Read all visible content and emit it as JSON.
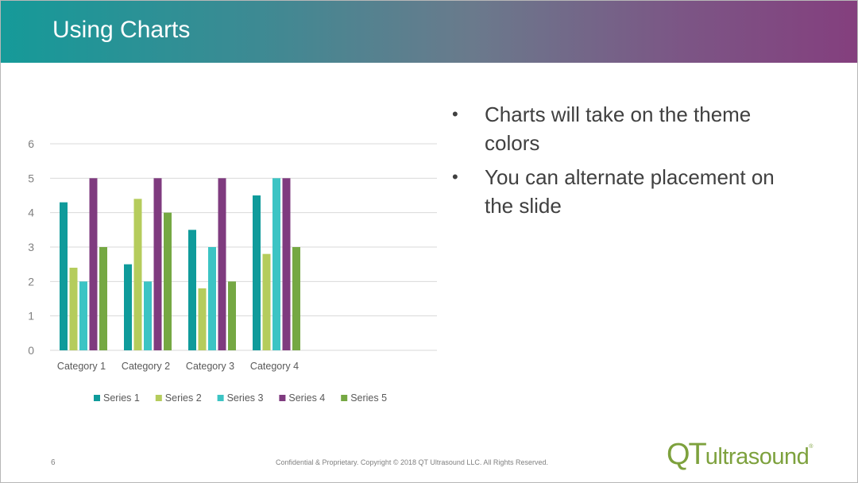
{
  "slide": {
    "title": "Using Charts",
    "bullets": [
      "Charts will take on the theme colors",
      "You can alternate placement on the slide"
    ],
    "page_number": "6",
    "footer": "Confidential & Proprietary. Copyright © 2018 QT Ultrasound LLC. All Rights Reserved.",
    "logo": {
      "qt": "QT",
      "word": "ultrasound",
      "reg": "®"
    },
    "header_gradient": [
      "#159a99",
      "#843f7e"
    ]
  },
  "chart_data": {
    "type": "bar",
    "categories": [
      "Category 1",
      "Category 2",
      "Category 3",
      "Category 4"
    ],
    "series": [
      {
        "name": "Series 1",
        "color": "#0f9b9b",
        "values": [
          4.3,
          2.5,
          3.5,
          4.5
        ]
      },
      {
        "name": "Series 2",
        "color": "#b5cc5c",
        "values": [
          2.4,
          4.4,
          1.8,
          2.8
        ]
      },
      {
        "name": "Series 3",
        "color": "#3cc4c4",
        "values": [
          2,
          2,
          3,
          5
        ]
      },
      {
        "name": "Series 4",
        "color": "#7f3b7f",
        "values": [
          5,
          5,
          5,
          5
        ]
      },
      {
        "name": "Series 5",
        "color": "#75a843",
        "values": [
          3,
          4,
          2,
          3
        ]
      }
    ],
    "ylim": [
      0,
      6
    ],
    "yticks": [
      0,
      1,
      2,
      3,
      4,
      5,
      6
    ],
    "grid": true,
    "legend": "bottom"
  }
}
